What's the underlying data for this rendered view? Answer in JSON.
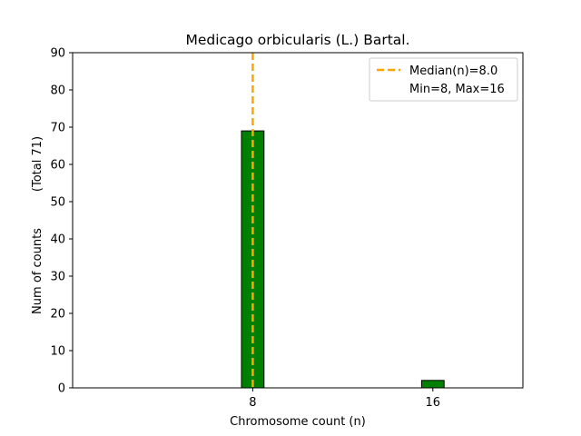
{
  "chart_data": {
    "type": "bar",
    "title": "Medicago orbicularis (L.) Bartal.",
    "xlabel": "Chromosome count (n)",
    "ylabel": "Num of counts",
    "ylabel_note": "(Total 71)",
    "xlim": [
      0,
      20
    ],
    "ylim": [
      0,
      90
    ],
    "yticks": [
      0,
      10,
      20,
      30,
      40,
      50,
      60,
      70,
      80,
      90
    ],
    "xticks": [
      8,
      16
    ],
    "bars": [
      {
        "x": 8,
        "value": 69
      },
      {
        "x": 16,
        "value": 2
      }
    ],
    "bar_width": 1,
    "bar_color": "#008000",
    "median": 8.0,
    "median_color": "#ffa500",
    "legend": {
      "position": "top-right",
      "entries": [
        "Median(n)=8.0",
        "Min=8, Max=16"
      ]
    },
    "grid": false
  }
}
